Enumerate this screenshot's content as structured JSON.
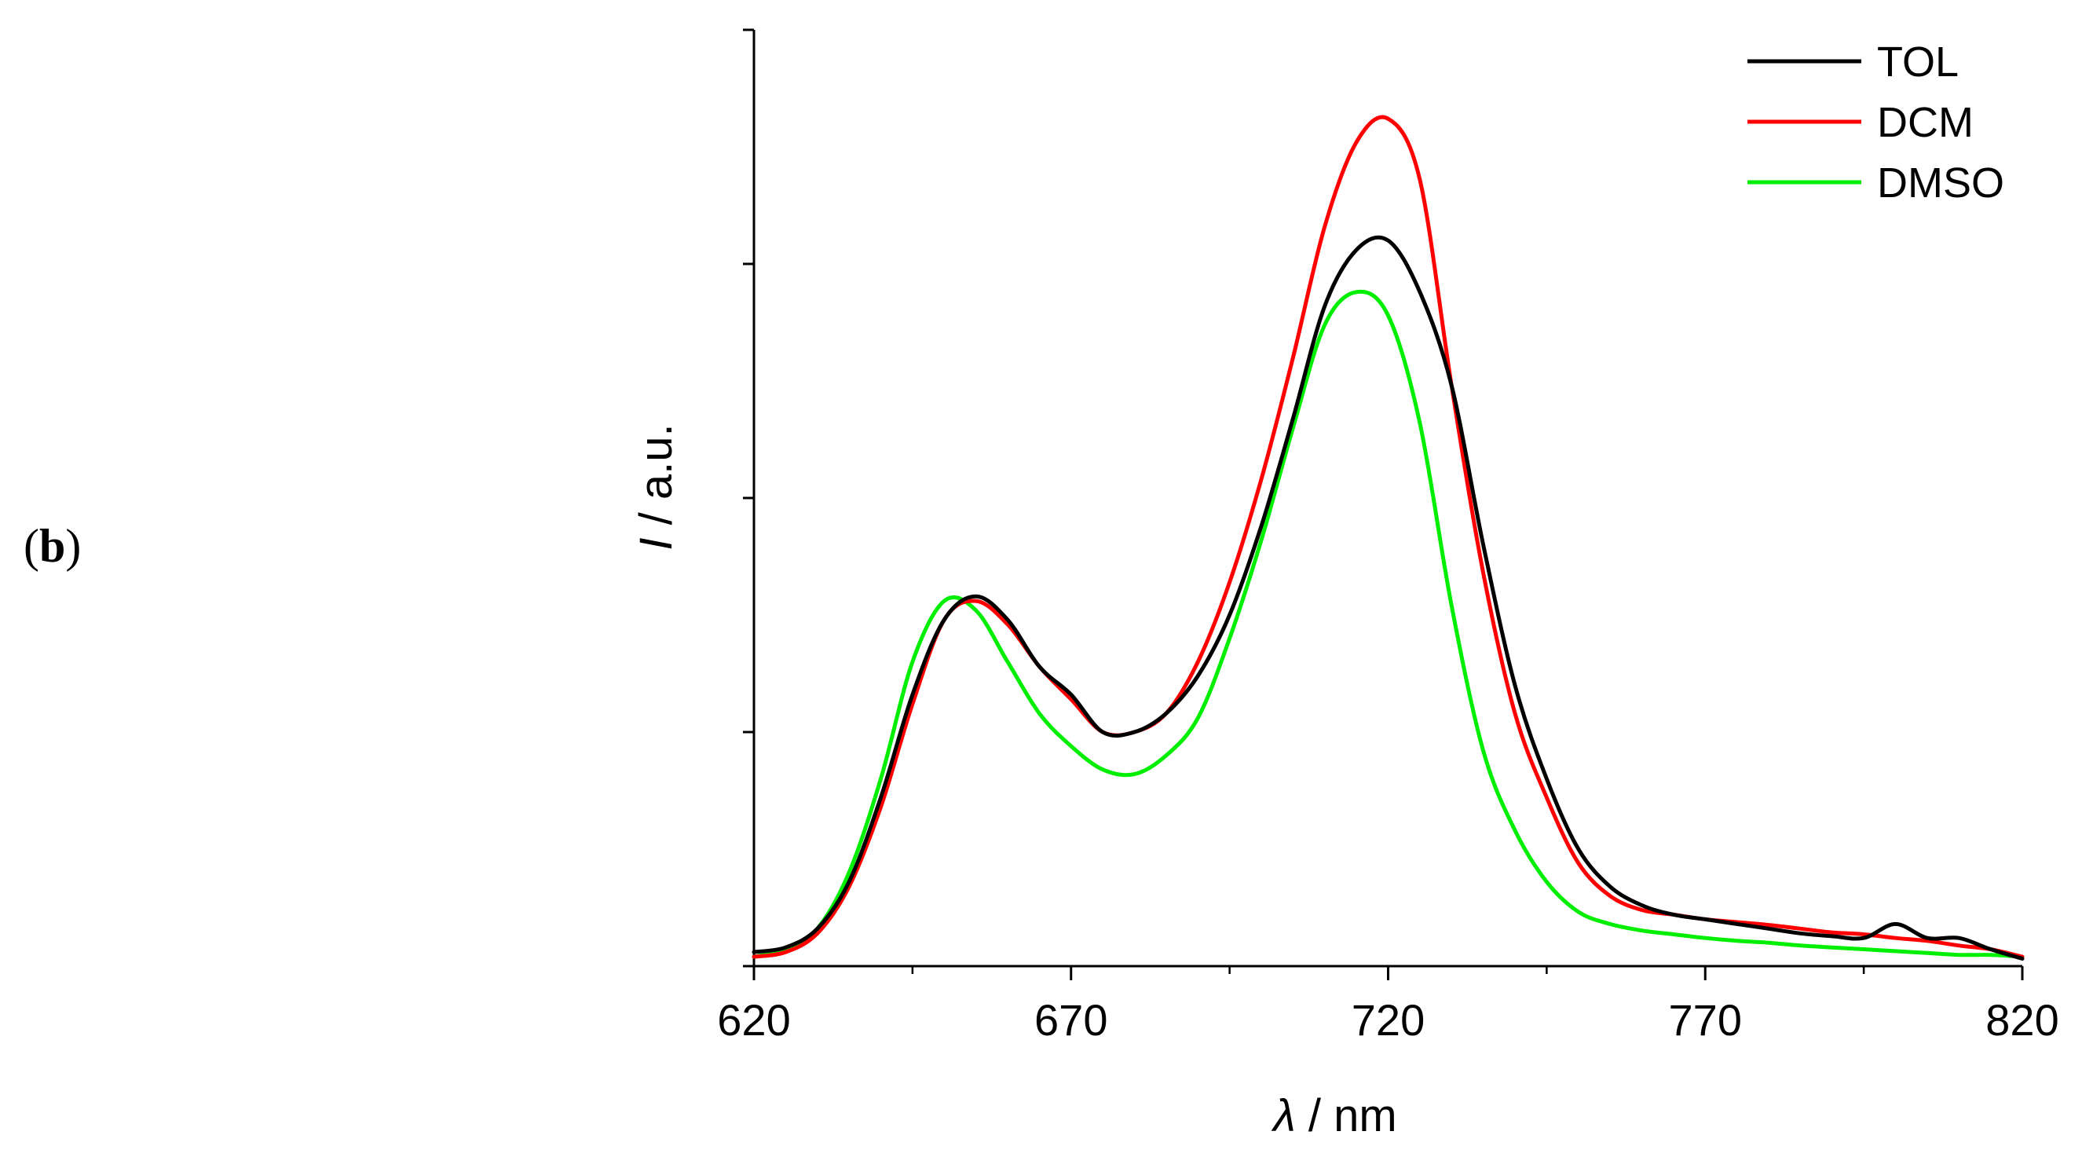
{
  "panel_label": {
    "open": "(",
    "letter": "b",
    "close": ")"
  },
  "chart_data": {
    "type": "line",
    "title": "",
    "xlabel": {
      "symbol": "λ",
      "unit": " / nm"
    },
    "ylabel": {
      "symbol": "I",
      "unit": " / a.u."
    },
    "xlim": [
      620,
      820
    ],
    "ylim": [
      0,
      1
    ],
    "xticks": [
      620,
      670,
      720,
      770,
      820
    ],
    "xtick_labels": [
      "620",
      "670",
      "720",
      "770",
      "820"
    ],
    "minor_xticks": [
      645,
      695,
      745,
      795
    ],
    "yticks_unlabeled": [
      0,
      0.25,
      0.5,
      0.75,
      1.0
    ],
    "legend_position": "top-right",
    "series": [
      {
        "name": "TOL",
        "color": "#000000",
        "x": [
          620,
          625,
          630,
          635,
          640,
          645,
          650,
          655,
          660,
          665,
          670,
          675,
          680,
          685,
          690,
          695,
          700,
          705,
          710,
          715,
          720,
          725,
          730,
          735,
          740,
          745,
          750,
          755,
          760,
          765,
          770,
          775,
          780,
          785,
          790,
          795,
          800,
          805,
          810,
          815,
          820
        ],
        "values": [
          0.015,
          0.02,
          0.04,
          0.09,
          0.18,
          0.29,
          0.37,
          0.395,
          0.37,
          0.32,
          0.29,
          0.25,
          0.25,
          0.27,
          0.31,
          0.375,
          0.47,
          0.585,
          0.705,
          0.765,
          0.775,
          0.72,
          0.62,
          0.45,
          0.3,
          0.2,
          0.125,
          0.085,
          0.065,
          0.055,
          0.05,
          0.045,
          0.04,
          0.035,
          0.032,
          0.03,
          0.045,
          0.03,
          0.03,
          0.018,
          0.008
        ]
      },
      {
        "name": "DCM",
        "color": "#ff0000",
        "x": [
          620,
          625,
          630,
          635,
          640,
          645,
          650,
          655,
          660,
          665,
          670,
          675,
          680,
          685,
          690,
          695,
          700,
          705,
          710,
          715,
          720,
          725,
          730,
          735,
          740,
          745,
          750,
          755,
          760,
          765,
          770,
          775,
          780,
          785,
          790,
          795,
          800,
          805,
          810,
          815,
          820
        ],
        "values": [
          0.01,
          0.015,
          0.035,
          0.085,
          0.17,
          0.28,
          0.37,
          0.39,
          0.365,
          0.32,
          0.285,
          0.25,
          0.25,
          0.27,
          0.325,
          0.41,
          0.52,
          0.65,
          0.79,
          0.88,
          0.905,
          0.84,
          0.62,
          0.42,
          0.27,
          0.18,
          0.11,
          0.075,
          0.06,
          0.055,
          0.05,
          0.047,
          0.044,
          0.04,
          0.036,
          0.034,
          0.03,
          0.027,
          0.022,
          0.018,
          0.01
        ]
      },
      {
        "name": "DMSO",
        "color": "#00ee00",
        "x": [
          620,
          625,
          630,
          635,
          640,
          645,
          650,
          655,
          660,
          665,
          670,
          675,
          680,
          685,
          690,
          695,
          700,
          705,
          710,
          715,
          720,
          725,
          730,
          735,
          740,
          745,
          750,
          755,
          760,
          765,
          770,
          775,
          780,
          785,
          790,
          795,
          800,
          805,
          810,
          815,
          820
        ],
        "values": [
          0.01,
          0.018,
          0.04,
          0.1,
          0.2,
          0.325,
          0.39,
          0.38,
          0.325,
          0.27,
          0.235,
          0.21,
          0.205,
          0.225,
          0.265,
          0.35,
          0.455,
          0.575,
          0.685,
          0.72,
          0.695,
          0.58,
          0.385,
          0.23,
          0.145,
          0.09,
          0.058,
          0.045,
          0.038,
          0.034,
          0.03,
          0.027,
          0.025,
          0.022,
          0.02,
          0.018,
          0.016,
          0.014,
          0.012,
          0.012,
          0.01
        ]
      }
    ]
  }
}
